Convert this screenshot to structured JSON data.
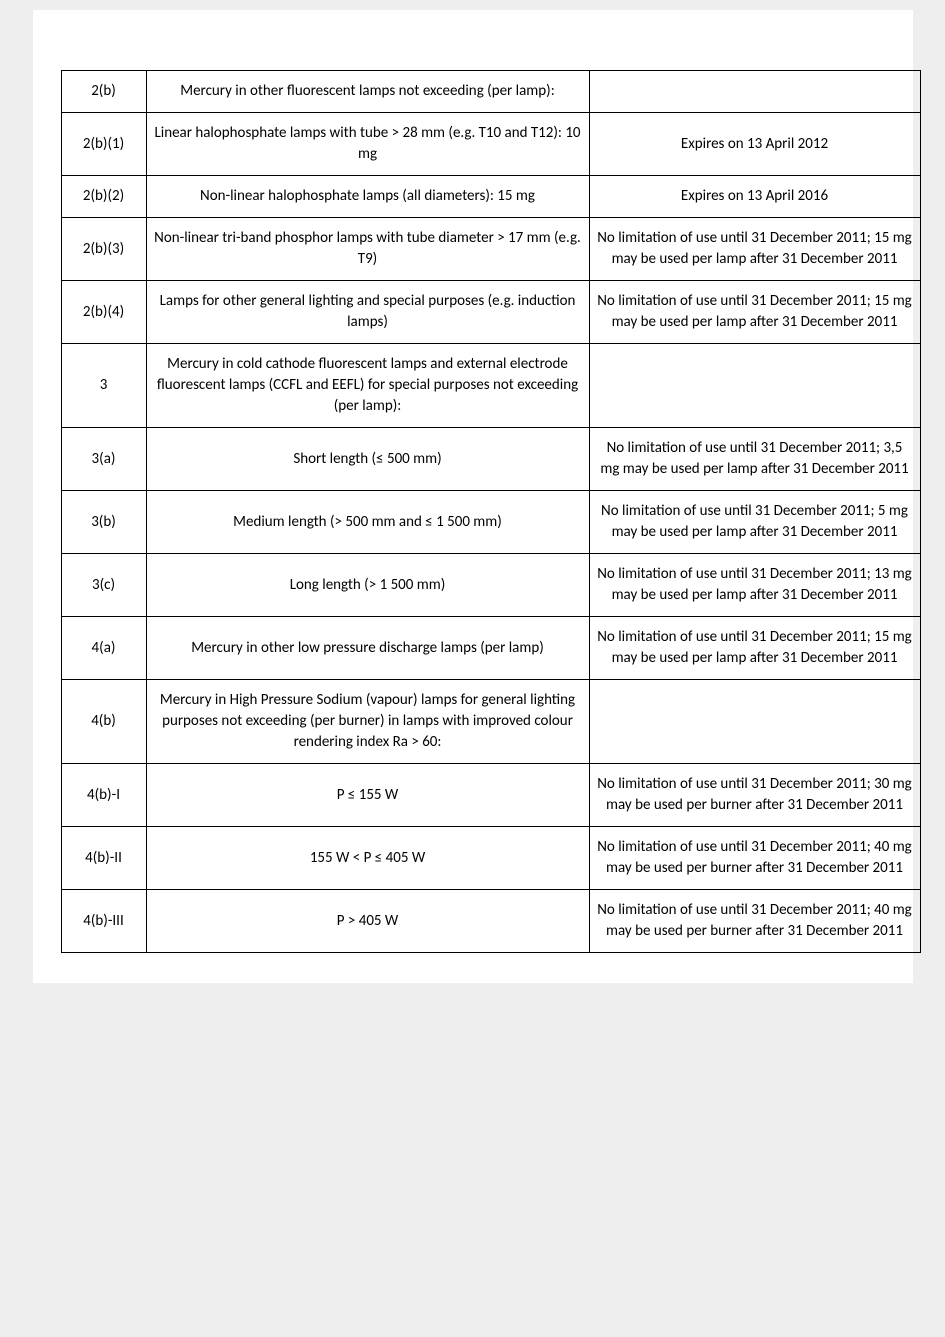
{
  "rows": [
    {
      "code": "2(b)",
      "desc": "Mercury in other fluorescent lamps not exceeding (per lamp):",
      "limit": ""
    },
    {
      "code": "2(b)(1)",
      "desc": "Linear halophosphate lamps with tube > 28 mm (e.g. T10 and T12): 10 mg",
      "limit": "Expires on 13 April 2012"
    },
    {
      "code": "2(b)(2)",
      "desc": "Non-linear halophosphate lamps (all diameters): 15 mg",
      "limit": "Expires on 13 April 2016"
    },
    {
      "code": "2(b)(3)",
      "desc": "Non-linear tri-band phosphor lamps with tube diameter > 17 mm (e.g. T9)",
      "limit": "No limitation of use until 31 December 2011; 15 mg may be used per lamp after 31 December 2011"
    },
    {
      "code": "2(b)(4)",
      "desc": "Lamps for other general lighting and special purposes (e.g. induction lamps)",
      "limit": "No limitation of use until 31 December 2011; 15 mg may be used per lamp after 31 December 2011"
    },
    {
      "code": "3",
      "desc": "Mercury in cold cathode fluorescent lamps and external electrode fluorescent lamps (CCFL and EEFL) for special purposes not exceeding (per lamp):",
      "limit": ""
    },
    {
      "code": "3(a)",
      "desc": "Short length (≤ 500 mm)",
      "limit": "No limitation of use until 31 December 2011; 3,5 mg may be used per lamp after 31 December 2011"
    },
    {
      "code": "3(b)",
      "desc": "Medium length (> 500 mm and ≤ 1 500 mm)",
      "limit": "No limitation of use until 31 December 2011; 5 mg may be used per lamp after 31 December 2011"
    },
    {
      "code": "3(c)",
      "desc": "Long length (> 1 500 mm)",
      "limit": "No limitation of use until 31 December 2011; 13 mg may be used per lamp after 31 December 2011"
    },
    {
      "code": "4(a)",
      "desc": "Mercury in other low pressure discharge lamps (per lamp)",
      "limit": "No limitation of use until 31 December 2011; 15 mg may be used per lamp after 31 December 2011"
    },
    {
      "code": "4(b)",
      "desc": "Mercury in High Pressure Sodium (vapour) lamps for general lighting purposes not exceeding (per burner) in lamps with improved colour rendering index Ra > 60:",
      "limit": ""
    },
    {
      "code": "4(b)-I",
      "desc": "P ≤ 155 W",
      "limit": "No limitation of use until 31 December 2011; 30 mg may be used per burner after 31 December 2011"
    },
    {
      "code": "4(b)-II",
      "desc": "155 W < P ≤ 405 W",
      "limit": "No limitation of use until 31 December 2011; 40 mg may be used per burner after 31 December 2011"
    },
    {
      "code": "4(b)-III",
      "desc": "P > 405 W",
      "limit": "No limitation of use until 31 December 2011; 40 mg may be used per burner after 31 December 2011"
    }
  ]
}
